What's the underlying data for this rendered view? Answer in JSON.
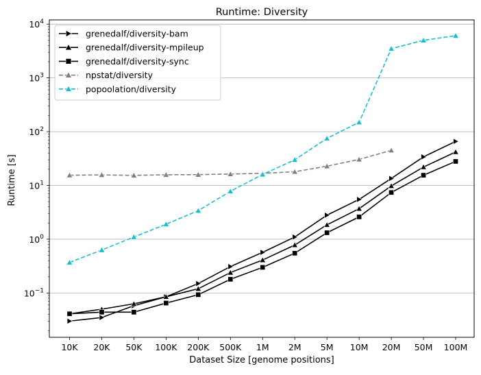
{
  "chart_data": {
    "type": "line",
    "title": "Runtime:  Diversity",
    "xlabel": "Dataset Size  [genome positions]",
    "ylabel": "Runtime  [s]",
    "yscale": "log",
    "ylim": [
      0.015,
      12000
    ],
    "ytick_values": [
      0.1,
      1,
      10,
      100,
      1000,
      10000
    ],
    "ytick_labels": [
      {
        "base": "10",
        "exp": "−1"
      },
      {
        "base": "10",
        "exp": "0"
      },
      {
        "base": "10",
        "exp": "1"
      },
      {
        "base": "10",
        "exp": "2"
      },
      {
        "base": "10",
        "exp": "3"
      },
      {
        "base": "10",
        "exp": "4"
      }
    ],
    "categories": [
      "10K",
      "20K",
      "50K",
      "100K",
      "200K",
      "500K",
      "1M",
      "2M",
      "5M",
      "10M",
      "20M",
      "50M",
      "100M"
    ],
    "grid": "y-major",
    "legend_position": "top-left",
    "series": [
      {
        "name": "grenedalf/diversity-bam",
        "color": "#000000",
        "dash": "solid",
        "marker": "triangle-right",
        "values": [
          0.03,
          0.035,
          0.058,
          0.085,
          0.15,
          0.31,
          0.57,
          1.1,
          2.8,
          5.5,
          13.5,
          34.0,
          66.0
        ]
      },
      {
        "name": "grenedalf/diversity-mpileup",
        "color": "#000000",
        "dash": "solid",
        "marker": "triangle-up",
        "values": [
          0.041,
          0.05,
          0.063,
          0.085,
          0.12,
          0.24,
          0.41,
          0.78,
          1.85,
          3.7,
          9.8,
          22.0,
          42.0
        ]
      },
      {
        "name": "grenedalf/diversity-sync",
        "color": "#000000",
        "dash": "solid",
        "marker": "square",
        "values": [
          0.041,
          0.044,
          0.044,
          0.065,
          0.093,
          0.18,
          0.3,
          0.55,
          1.32,
          2.6,
          7.4,
          15.5,
          28.0
        ]
      },
      {
        "name": "npstat/diversity",
        "color": "#7f7f7f",
        "dash": "dashed",
        "marker": "triangle-up",
        "values": [
          15.5,
          15.7,
          15.4,
          15.8,
          15.9,
          16.3,
          16.8,
          18.0,
          22.8,
          30.5,
          45.0,
          null,
          null
        ]
      },
      {
        "name": "popoolation/diversity",
        "color": "#17becf",
        "dash": "dashed",
        "marker": "triangle-up",
        "values": [
          0.37,
          0.63,
          1.1,
          1.9,
          3.4,
          7.8,
          16.0,
          30.0,
          75.0,
          150.0,
          3500.0,
          5000.0,
          6100.0
        ]
      }
    ]
  }
}
